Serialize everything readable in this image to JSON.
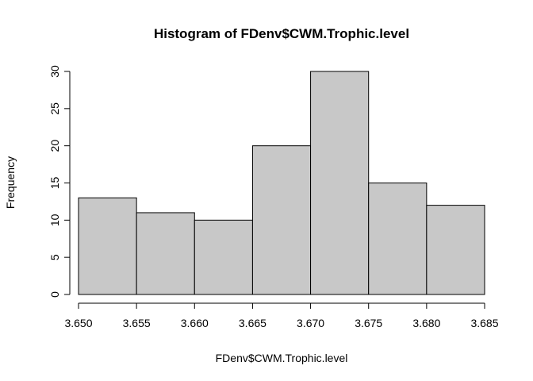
{
  "chart_data": {
    "type": "bar",
    "title": "Histogram of FDenv$CWM.Trophic.level",
    "xlabel": "FDenv$CWM.Trophic.level",
    "ylabel": "Frequency",
    "bins": [
      {
        "start": 3.65,
        "end": 3.655,
        "value": 13
      },
      {
        "start": 3.655,
        "end": 3.66,
        "value": 11
      },
      {
        "start": 3.66,
        "end": 3.665,
        "value": 10
      },
      {
        "start": 3.665,
        "end": 3.67,
        "value": 20
      },
      {
        "start": 3.67,
        "end": 3.675,
        "value": 30
      },
      {
        "start": 3.675,
        "end": 3.68,
        "value": 15
      },
      {
        "start": 3.68,
        "end": 3.685,
        "value": 12
      }
    ],
    "xlim": [
      3.65,
      3.685
    ],
    "ylim": [
      0,
      30
    ],
    "xticks": [
      "3.650",
      "3.655",
      "3.660",
      "3.665",
      "3.670",
      "3.675",
      "3.680",
      "3.685"
    ],
    "yticks": [
      "0",
      "5",
      "10",
      "15",
      "20",
      "25",
      "30"
    ],
    "grid": false,
    "bar_color": "#c8c8c8"
  }
}
